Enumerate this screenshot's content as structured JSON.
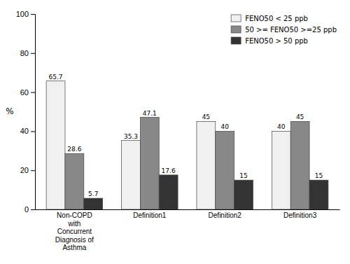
{
  "chart_data": {
    "type": "bar",
    "categories": [
      "Non-COPD\nwith\nConcurrent\nDiagnosis of\nAsthma",
      "Definition1",
      "Definition2",
      "Definition3"
    ],
    "series": [
      {
        "name": "FENO50 < 25 ppb",
        "color": "#f0f0f0",
        "values": [
          65.7,
          35.3,
          45,
          40
        ]
      },
      {
        "name": "50 >= FENO50 >=25 ppb",
        "color": "#888888",
        "values": [
          28.6,
          47.1,
          40,
          45
        ]
      },
      {
        "name": "FENO50 > 50 ppb",
        "color": "#333333",
        "values": [
          5.7,
          17.6,
          15,
          15
        ]
      }
    ],
    "ylabel": "%",
    "ylim": [
      0,
      100
    ],
    "yticks": [
      0,
      20,
      40,
      60,
      80,
      100
    ],
    "data_labels": true,
    "legend": "upper right",
    "grid": false
  }
}
